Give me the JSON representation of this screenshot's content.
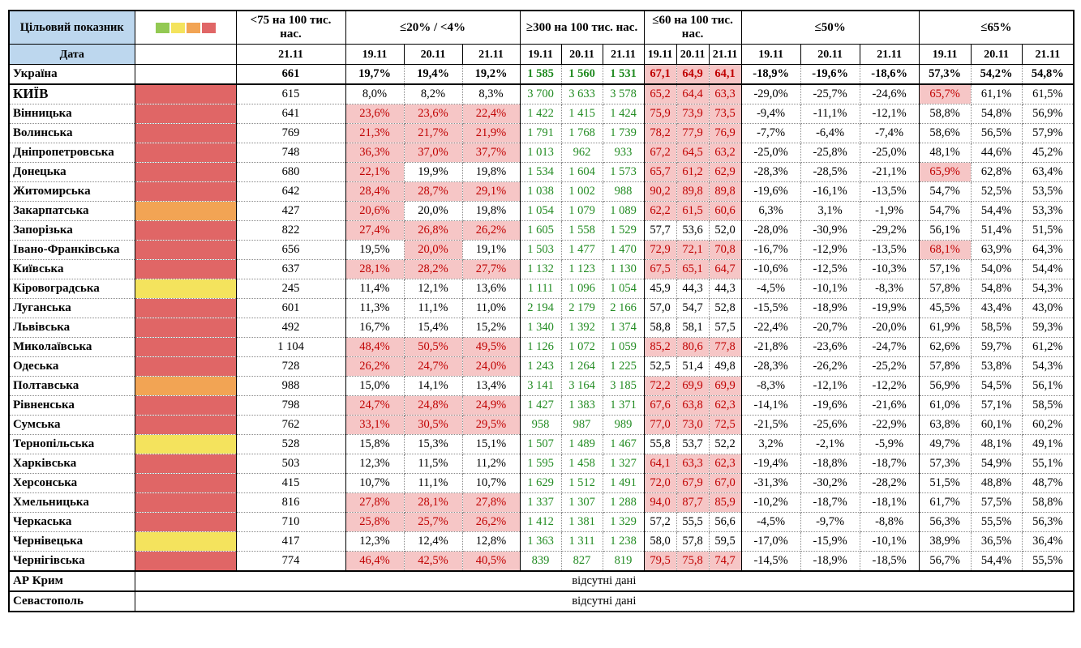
{
  "colors": {
    "header_blue": "#BDD7EE",
    "red": "#E06666",
    "orange": "#F2A454",
    "yellow": "#F4E35D",
    "green": "#93C953",
    "pink_bg": "#F6C6C6",
    "red_text": "#C00000",
    "green_text": "#228B22"
  },
  "header": {
    "target_label": "Цільовий показник",
    "date_label": "Дата",
    "legend_colors": [
      "#93C953",
      "#F4E35D",
      "#F2A454",
      "#E06666"
    ],
    "groups": [
      {
        "key": "c75",
        "kind": "plain",
        "title": "<75 на 100 тис. нас.",
        "dates": [
          "21.11"
        ]
      },
      {
        "key": "p20",
        "kind": "pink",
        "title": "≤20% / <4%",
        "dates": [
          "19.11",
          "20.11",
          "21.11"
        ]
      },
      {
        "key": "p300",
        "kind": "green",
        "title": "≥300 на 100 тис. нас.",
        "dates": [
          "19.11",
          "20.11",
          "21.11"
        ]
      },
      {
        "key": "p60",
        "kind": "pink",
        "title": "≤60 на 100 тис. нас.",
        "dates": [
          "19.11",
          "20.11",
          "21.11"
        ]
      },
      {
        "key": "p50",
        "kind": "plain",
        "title": "≤50%",
        "dates": [
          "19.11",
          "20.11",
          "21.11"
        ]
      },
      {
        "key": "p65",
        "kind": "pink",
        "title": "≤65%",
        "dates": [
          "19.11",
          "20.11",
          "21.11"
        ]
      }
    ]
  },
  "rows": [
    {
      "name": "Україна",
      "status": "none",
      "bold": true,
      "solid_bottom": true,
      "c75": "661",
      "p20": [
        "19,7%",
        "19,4%",
        "19,2%"
      ],
      "p20_hl": [
        0,
        0,
        0
      ],
      "p300": [
        "1 585",
        "1 560",
        "1 531"
      ],
      "p60": [
        "67,1",
        "64,9",
        "64,1"
      ],
      "p60_hl": [
        1,
        1,
        1
      ],
      "p50": [
        "-18,9%",
        "-19,6%",
        "-18,6%"
      ],
      "p65": [
        "57,3%",
        "54,2%",
        "54,8%"
      ],
      "p65_hl": [
        0,
        0,
        0
      ]
    },
    {
      "name": "КИЇВ",
      "status": "red",
      "big": true,
      "c75": "615",
      "p20": [
        "8,0%",
        "8,2%",
        "8,3%"
      ],
      "p20_hl": [
        0,
        0,
        0
      ],
      "p300": [
        "3 700",
        "3 633",
        "3 578"
      ],
      "p60": [
        "65,2",
        "64,4",
        "63,3"
      ],
      "p60_hl": [
        1,
        1,
        1
      ],
      "p50": [
        "-29,0%",
        "-25,7%",
        "-24,6%"
      ],
      "p65": [
        "65,7%",
        "61,1%",
        "61,5%"
      ],
      "p65_hl": [
        1,
        0,
        0
      ]
    },
    {
      "name": "Вінницька",
      "status": "red",
      "c75": "641",
      "p20": [
        "23,6%",
        "23,6%",
        "22,4%"
      ],
      "p20_hl": [
        1,
        1,
        1
      ],
      "p300": [
        "1 422",
        "1 415",
        "1 424"
      ],
      "p60": [
        "75,9",
        "73,9",
        "73,5"
      ],
      "p60_hl": [
        1,
        1,
        1
      ],
      "p50": [
        "-9,4%",
        "-11,1%",
        "-12,1%"
      ],
      "p65": [
        "58,8%",
        "54,8%",
        "56,9%"
      ],
      "p65_hl": [
        0,
        0,
        0
      ]
    },
    {
      "name": "Волинська",
      "status": "red",
      "c75": "769",
      "p20": [
        "21,3%",
        "21,7%",
        "21,9%"
      ],
      "p20_hl": [
        1,
        1,
        1
      ],
      "p300": [
        "1 791",
        "1 768",
        "1 739"
      ],
      "p60": [
        "78,2",
        "77,9",
        "76,9"
      ],
      "p60_hl": [
        1,
        1,
        1
      ],
      "p50": [
        "-7,7%",
        "-6,4%",
        "-7,4%"
      ],
      "p65": [
        "58,6%",
        "56,5%",
        "57,9%"
      ],
      "p65_hl": [
        0,
        0,
        0
      ]
    },
    {
      "name": "Дніпропетровська",
      "status": "red",
      "c75": "748",
      "p20": [
        "36,3%",
        "37,0%",
        "37,7%"
      ],
      "p20_hl": [
        1,
        1,
        1
      ],
      "p300": [
        "1 013",
        "962",
        "933"
      ],
      "p60": [
        "67,2",
        "64,5",
        "63,2"
      ],
      "p60_hl": [
        1,
        1,
        1
      ],
      "p50": [
        "-25,0%",
        "-25,8%",
        "-25,0%"
      ],
      "p65": [
        "48,1%",
        "44,6%",
        "45,2%"
      ],
      "p65_hl": [
        0,
        0,
        0
      ]
    },
    {
      "name": "Донецька",
      "status": "red",
      "c75": "680",
      "p20": [
        "22,1%",
        "19,9%",
        "19,8%"
      ],
      "p20_hl": [
        1,
        0,
        0
      ],
      "p300": [
        "1 534",
        "1 604",
        "1 573"
      ],
      "p60": [
        "65,7",
        "61,2",
        "62,9"
      ],
      "p60_hl": [
        1,
        1,
        1
      ],
      "p50": [
        "-28,3%",
        "-28,5%",
        "-21,1%"
      ],
      "p65": [
        "65,9%",
        "62,8%",
        "63,4%"
      ],
      "p65_hl": [
        1,
        0,
        0
      ]
    },
    {
      "name": "Житомирська",
      "status": "red",
      "c75": "642",
      "p20": [
        "28,4%",
        "28,7%",
        "29,1%"
      ],
      "p20_hl": [
        1,
        1,
        1
      ],
      "p300": [
        "1 038",
        "1 002",
        "988"
      ],
      "p60": [
        "90,2",
        "89,8",
        "89,8"
      ],
      "p60_hl": [
        1,
        1,
        1
      ],
      "p50": [
        "-19,6%",
        "-16,1%",
        "-13,5%"
      ],
      "p65": [
        "54,7%",
        "52,5%",
        "53,5%"
      ],
      "p65_hl": [
        0,
        0,
        0
      ]
    },
    {
      "name": "Закарпатська",
      "status": "orange",
      "c75": "427",
      "p20": [
        "20,6%",
        "20,0%",
        "19,8%"
      ],
      "p20_hl": [
        1,
        0,
        0
      ],
      "p300": [
        "1 054",
        "1 079",
        "1 089"
      ],
      "p60": [
        "62,2",
        "61,5",
        "60,6"
      ],
      "p60_hl": [
        1,
        1,
        1
      ],
      "p50": [
        "6,3%",
        "3,1%",
        "-1,9%"
      ],
      "p65": [
        "54,7%",
        "54,4%",
        "53,3%"
      ],
      "p65_hl": [
        0,
        0,
        0
      ]
    },
    {
      "name": "Запорізька",
      "status": "red",
      "c75": "822",
      "p20": [
        "27,4%",
        "26,8%",
        "26,2%"
      ],
      "p20_hl": [
        1,
        1,
        1
      ],
      "p300": [
        "1 605",
        "1 558",
        "1 529"
      ],
      "p60": [
        "57,7",
        "53,6",
        "52,0"
      ],
      "p60_hl": [
        0,
        0,
        0
      ],
      "p50": [
        "-28,0%",
        "-30,9%",
        "-29,2%"
      ],
      "p65": [
        "56,1%",
        "51,4%",
        "51,5%"
      ],
      "p65_hl": [
        0,
        0,
        0
      ]
    },
    {
      "name": "Івано-Франківська",
      "status": "red",
      "c75": "656",
      "p20": [
        "19,5%",
        "20,0%",
        "19,1%"
      ],
      "p20_hl": [
        0,
        1,
        0
      ],
      "p300": [
        "1 503",
        "1 477",
        "1 470"
      ],
      "p60": [
        "72,9",
        "72,1",
        "70,8"
      ],
      "p60_hl": [
        1,
        1,
        1
      ],
      "p50": [
        "-16,7%",
        "-12,9%",
        "-13,5%"
      ],
      "p65": [
        "68,1%",
        "63,9%",
        "64,3%"
      ],
      "p65_hl": [
        1,
        0,
        0
      ]
    },
    {
      "name": "Київська",
      "status": "red",
      "c75": "637",
      "p20": [
        "28,1%",
        "28,2%",
        "27,7%"
      ],
      "p20_hl": [
        1,
        1,
        1
      ],
      "p300": [
        "1 132",
        "1 123",
        "1 130"
      ],
      "p60": [
        "67,5",
        "65,1",
        "64,7"
      ],
      "p60_hl": [
        1,
        1,
        1
      ],
      "p50": [
        "-10,6%",
        "-12,5%",
        "-10,3%"
      ],
      "p65": [
        "57,1%",
        "54,0%",
        "54,4%"
      ],
      "p65_hl": [
        0,
        0,
        0
      ]
    },
    {
      "name": "Кіровоградська",
      "status": "yellow",
      "c75": "245",
      "p20": [
        "11,4%",
        "12,1%",
        "13,6%"
      ],
      "p20_hl": [
        0,
        0,
        0
      ],
      "p300": [
        "1 111",
        "1 096",
        "1 054"
      ],
      "p60": [
        "45,9",
        "44,3",
        "44,3"
      ],
      "p60_hl": [
        0,
        0,
        0
      ],
      "p50": [
        "-4,5%",
        "-10,1%",
        "-8,3%"
      ],
      "p65": [
        "57,8%",
        "54,8%",
        "54,3%"
      ],
      "p65_hl": [
        0,
        0,
        0
      ]
    },
    {
      "name": "Луганська",
      "status": "red",
      "c75": "601",
      "p20": [
        "11,3%",
        "11,1%",
        "11,0%"
      ],
      "p20_hl": [
        0,
        0,
        0
      ],
      "p300": [
        "2 194",
        "2 179",
        "2 166"
      ],
      "p60": [
        "57,0",
        "54,7",
        "52,8"
      ],
      "p60_hl": [
        0,
        0,
        0
      ],
      "p50": [
        "-15,5%",
        "-18,9%",
        "-19,9%"
      ],
      "p65": [
        "45,5%",
        "43,4%",
        "43,0%"
      ],
      "p65_hl": [
        0,
        0,
        0
      ]
    },
    {
      "name": "Львівська",
      "status": "red",
      "c75": "492",
      "p20": [
        "16,7%",
        "15,4%",
        "15,2%"
      ],
      "p20_hl": [
        0,
        0,
        0
      ],
      "p300": [
        "1 340",
        "1 392",
        "1 374"
      ],
      "p60": [
        "58,8",
        "58,1",
        "57,5"
      ],
      "p60_hl": [
        0,
        0,
        0
      ],
      "p50": [
        "-22,4%",
        "-20,7%",
        "-20,0%"
      ],
      "p65": [
        "61,9%",
        "58,5%",
        "59,3%"
      ],
      "p65_hl": [
        0,
        0,
        0
      ]
    },
    {
      "name": "Миколаївська",
      "status": "red",
      "c75": "1 104",
      "p20": [
        "48,4%",
        "50,5%",
        "49,5%"
      ],
      "p20_hl": [
        1,
        1,
        1
      ],
      "p300": [
        "1 126",
        "1 072",
        "1 059"
      ],
      "p60": [
        "85,2",
        "80,6",
        "77,8"
      ],
      "p60_hl": [
        1,
        1,
        1
      ],
      "p50": [
        "-21,8%",
        "-23,6%",
        "-24,7%"
      ],
      "p65": [
        "62,6%",
        "59,7%",
        "61,2%"
      ],
      "p65_hl": [
        0,
        0,
        0
      ]
    },
    {
      "name": "Одеська",
      "status": "red",
      "c75": "728",
      "p20": [
        "26,2%",
        "24,7%",
        "24,0%"
      ],
      "p20_hl": [
        1,
        1,
        1
      ],
      "p300": [
        "1 243",
        "1 264",
        "1 225"
      ],
      "p60": [
        "52,5",
        "51,4",
        "49,8"
      ],
      "p60_hl": [
        0,
        0,
        0
      ],
      "p50": [
        "-28,3%",
        "-26,2%",
        "-25,2%"
      ],
      "p65": [
        "57,8%",
        "53,8%",
        "54,3%"
      ],
      "p65_hl": [
        0,
        0,
        0
      ]
    },
    {
      "name": "Полтавська",
      "status": "orange",
      "c75": "988",
      "p20": [
        "15,0%",
        "14,1%",
        "13,4%"
      ],
      "p20_hl": [
        0,
        0,
        0
      ],
      "p300": [
        "3 141",
        "3 164",
        "3 185"
      ],
      "p60": [
        "72,2",
        "69,9",
        "69,9"
      ],
      "p60_hl": [
        1,
        1,
        1
      ],
      "p50": [
        "-8,3%",
        "-12,1%",
        "-12,2%"
      ],
      "p65": [
        "56,9%",
        "54,5%",
        "56,1%"
      ],
      "p65_hl": [
        0,
        0,
        0
      ]
    },
    {
      "name": "Рівненська",
      "status": "red",
      "c75": "798",
      "p20": [
        "24,7%",
        "24,8%",
        "24,9%"
      ],
      "p20_hl": [
        1,
        1,
        1
      ],
      "p300": [
        "1 427",
        "1 383",
        "1 371"
      ],
      "p60": [
        "67,6",
        "63,8",
        "62,3"
      ],
      "p60_hl": [
        1,
        1,
        1
      ],
      "p50": [
        "-14,1%",
        "-19,6%",
        "-21,6%"
      ],
      "p65": [
        "61,0%",
        "57,1%",
        "58,5%"
      ],
      "p65_hl": [
        0,
        0,
        0
      ]
    },
    {
      "name": "Сумська",
      "status": "red",
      "c75": "762",
      "p20": [
        "33,1%",
        "30,5%",
        "29,5%"
      ],
      "p20_hl": [
        1,
        1,
        1
      ],
      "p300": [
        "958",
        "987",
        "989"
      ],
      "p60": [
        "77,0",
        "73,0",
        "72,5"
      ],
      "p60_hl": [
        1,
        1,
        1
      ],
      "p50": [
        "-21,5%",
        "-25,6%",
        "-22,9%"
      ],
      "p65": [
        "63,8%",
        "60,1%",
        "60,2%"
      ],
      "p65_hl": [
        0,
        0,
        0
      ]
    },
    {
      "name": "Тернопільська",
      "status": "yellow",
      "c75": "528",
      "p20": [
        "15,8%",
        "15,3%",
        "15,1%"
      ],
      "p20_hl": [
        0,
        0,
        0
      ],
      "p300": [
        "1 507",
        "1 489",
        "1 467"
      ],
      "p60": [
        "55,8",
        "53,7",
        "52,2"
      ],
      "p60_hl": [
        0,
        0,
        0
      ],
      "p50": [
        "3,2%",
        "-2,1%",
        "-5,9%"
      ],
      "p65": [
        "49,7%",
        "48,1%",
        "49,1%"
      ],
      "p65_hl": [
        0,
        0,
        0
      ]
    },
    {
      "name": "Харківська",
      "status": "red",
      "c75": "503",
      "p20": [
        "12,3%",
        "11,5%",
        "11,2%"
      ],
      "p20_hl": [
        0,
        0,
        0
      ],
      "p300": [
        "1 595",
        "1 458",
        "1 327"
      ],
      "p60": [
        "64,1",
        "63,3",
        "62,3"
      ],
      "p60_hl": [
        1,
        1,
        1
      ],
      "p50": [
        "-19,4%",
        "-18,8%",
        "-18,7%"
      ],
      "p65": [
        "57,3%",
        "54,9%",
        "55,1%"
      ],
      "p65_hl": [
        0,
        0,
        0
      ]
    },
    {
      "name": "Херсонська",
      "status": "red",
      "c75": "415",
      "p20": [
        "10,7%",
        "11,1%",
        "10,7%"
      ],
      "p20_hl": [
        0,
        0,
        0
      ],
      "p300": [
        "1 629",
        "1 512",
        "1 491"
      ],
      "p60": [
        "72,0",
        "67,9",
        "67,0"
      ],
      "p60_hl": [
        1,
        1,
        1
      ],
      "p50": [
        "-31,3%",
        "-30,2%",
        "-28,2%"
      ],
      "p65": [
        "51,5%",
        "48,8%",
        "48,7%"
      ],
      "p65_hl": [
        0,
        0,
        0
      ]
    },
    {
      "name": "Хмельницька",
      "status": "red",
      "c75": "816",
      "p20": [
        "27,8%",
        "28,1%",
        "27,8%"
      ],
      "p20_hl": [
        1,
        1,
        1
      ],
      "p300": [
        "1 337",
        "1 307",
        "1 288"
      ],
      "p60": [
        "94,0",
        "87,7",
        "85,9"
      ],
      "p60_hl": [
        1,
        1,
        1
      ],
      "p50": [
        "-10,2%",
        "-18,7%",
        "-18,1%"
      ],
      "p65": [
        "61,7%",
        "57,5%",
        "58,8%"
      ],
      "p65_hl": [
        0,
        0,
        0
      ]
    },
    {
      "name": "Черкаська",
      "status": "red",
      "c75": "710",
      "p20": [
        "25,8%",
        "25,7%",
        "26,2%"
      ],
      "p20_hl": [
        1,
        1,
        1
      ],
      "p300": [
        "1 412",
        "1 381",
        "1 329"
      ],
      "p60": [
        "57,2",
        "55,5",
        "56,6"
      ],
      "p60_hl": [
        0,
        0,
        0
      ],
      "p50": [
        "-4,5%",
        "-9,7%",
        "-8,8%"
      ],
      "p65": [
        "56,3%",
        "55,5%",
        "56,3%"
      ],
      "p65_hl": [
        0,
        0,
        0
      ]
    },
    {
      "name": "Чернівецька",
      "status": "yellow",
      "c75": "417",
      "p20": [
        "12,3%",
        "12,4%",
        "12,8%"
      ],
      "p20_hl": [
        0,
        0,
        0
      ],
      "p300": [
        "1 363",
        "1 311",
        "1 238"
      ],
      "p60": [
        "58,0",
        "57,8",
        "59,5"
      ],
      "p60_hl": [
        0,
        0,
        0
      ],
      "p50": [
        "-17,0%",
        "-15,9%",
        "-10,1%"
      ],
      "p65": [
        "38,9%",
        "36,5%",
        "36,4%"
      ],
      "p65_hl": [
        0,
        0,
        0
      ]
    },
    {
      "name": "Чернігівська",
      "status": "red",
      "c75": "774",
      "p20": [
        "46,4%",
        "42,5%",
        "40,5%"
      ],
      "p20_hl": [
        1,
        1,
        1
      ],
      "p300": [
        "839",
        "827",
        "819"
      ],
      "p60": [
        "79,5",
        "75,8",
        "74,7"
      ],
      "p60_hl": [
        1,
        1,
        1
      ],
      "p50": [
        "-14,5%",
        "-18,9%",
        "-18,5%"
      ],
      "p65": [
        "56,7%",
        "54,4%",
        "55,5%"
      ],
      "p65_hl": [
        0,
        0,
        0
      ]
    }
  ],
  "no_data_rows": [
    {
      "name": "АР Крим",
      "text": "відсутні дані"
    },
    {
      "name": "Севастополь",
      "text": "відсутні дані"
    }
  ]
}
